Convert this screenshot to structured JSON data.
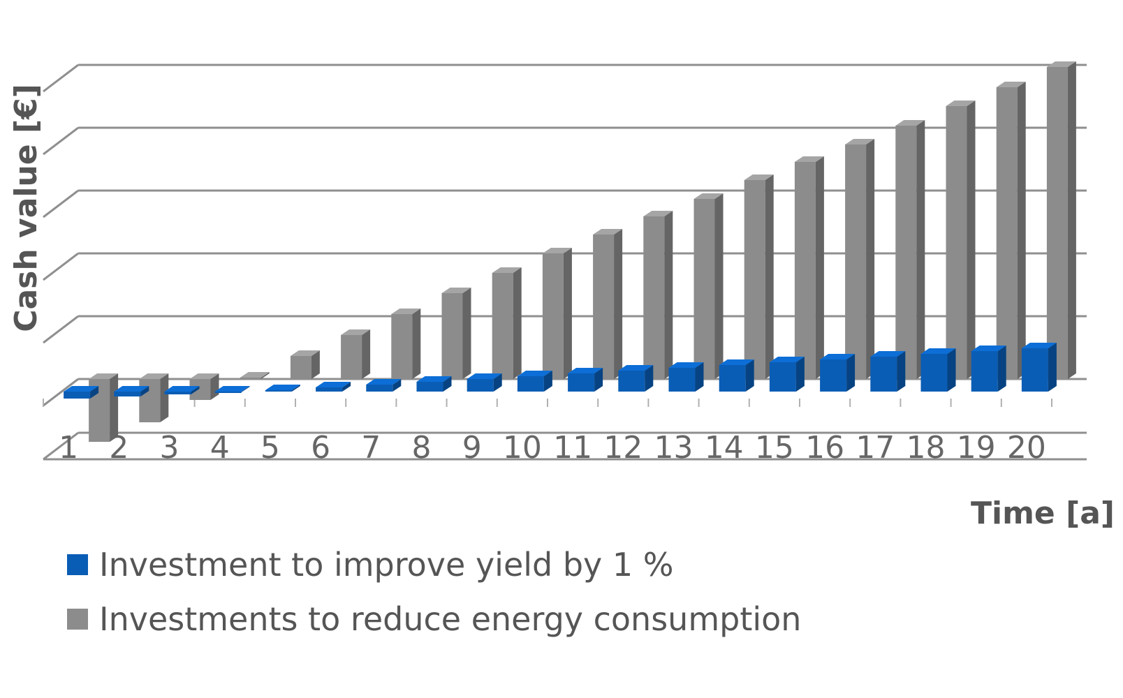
{
  "chart_data": {
    "type": "bar",
    "title": "",
    "xlabel": "Time [a]",
    "ylabel": "Cash value [€]",
    "categories": [
      "1",
      "2",
      "3",
      "4",
      "5",
      "6",
      "7",
      "8",
      "9",
      "10",
      "11",
      "12",
      "13",
      "14",
      "15",
      "16",
      "17",
      "18",
      "19",
      "20"
    ],
    "series": [
      {
        "name": "Investment to improve yield by 1 %",
        "color": "#0a5db5",
        "values": [
          -10,
          -7,
          -4,
          -1,
          2,
          6,
          10,
          14,
          18,
          22,
          26,
          30,
          34,
          38,
          42,
          46,
          50,
          54,
          58,
          62
        ]
      },
      {
        "name": "Investments to reduce energy consumption",
        "color": "#8c8c8c",
        "values": [
          -90,
          -62,
          -30,
          2,
          33,
          63,
          93,
          123,
          152,
          180,
          207,
          233,
          258,
          285,
          311,
          336,
          363,
          391,
          418,
          447
        ]
      }
    ],
    "grid": true,
    "y_tick_labels_shown": false,
    "legend_position": "bottom-left"
  }
}
